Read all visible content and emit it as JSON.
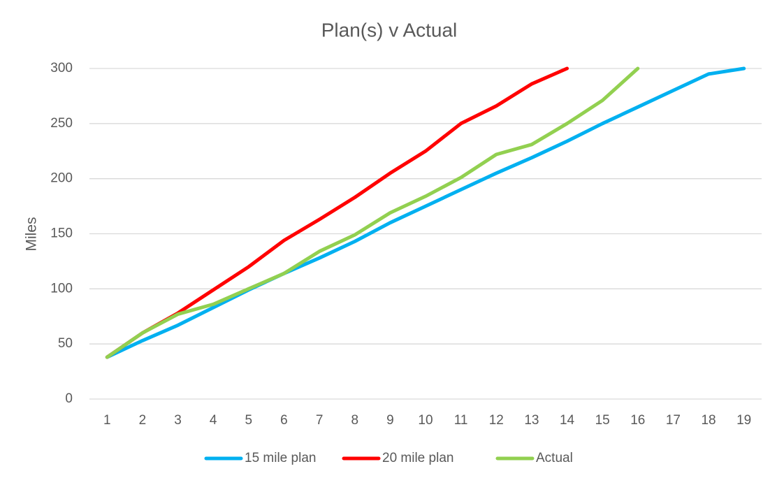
{
  "chart_data": {
    "type": "line",
    "title": "Plan(s) v Actual",
    "y_label": "Miles",
    "categories": [
      "1",
      "2",
      "3",
      "4",
      "5",
      "6",
      "7",
      "8",
      "9",
      "10",
      "11",
      "12",
      "13",
      "14",
      "15",
      "16",
      "17",
      "18",
      "19"
    ],
    "series": [
      {
        "name": "15 mile plan",
        "color": "#00b0f0",
        "values": [
          38,
          53,
          67,
          83,
          99,
          114,
          128,
          143,
          160,
          175,
          190,
          205,
          219,
          234,
          250,
          265,
          280,
          295,
          300
        ]
      },
      {
        "name": "20 mile plan",
        "color": "#ff0000",
        "values": [
          38,
          60,
          78,
          99,
          120,
          144,
          163,
          183,
          205,
          225,
          250,
          266,
          286,
          300,
          null,
          null,
          null,
          null,
          null
        ]
      },
      {
        "name": "Actual",
        "color": "#92d050",
        "values": [
          38,
          60,
          77,
          86,
          100,
          114,
          134,
          149,
          169,
          184,
          201,
          222,
          231,
          250,
          271,
          300,
          null,
          null,
          null
        ]
      }
    ],
    "ylim": [
      0,
      300
    ],
    "yticks": [
      0,
      50,
      100,
      150,
      200,
      250,
      300
    ],
    "grid": true,
    "legend": "bottom"
  }
}
